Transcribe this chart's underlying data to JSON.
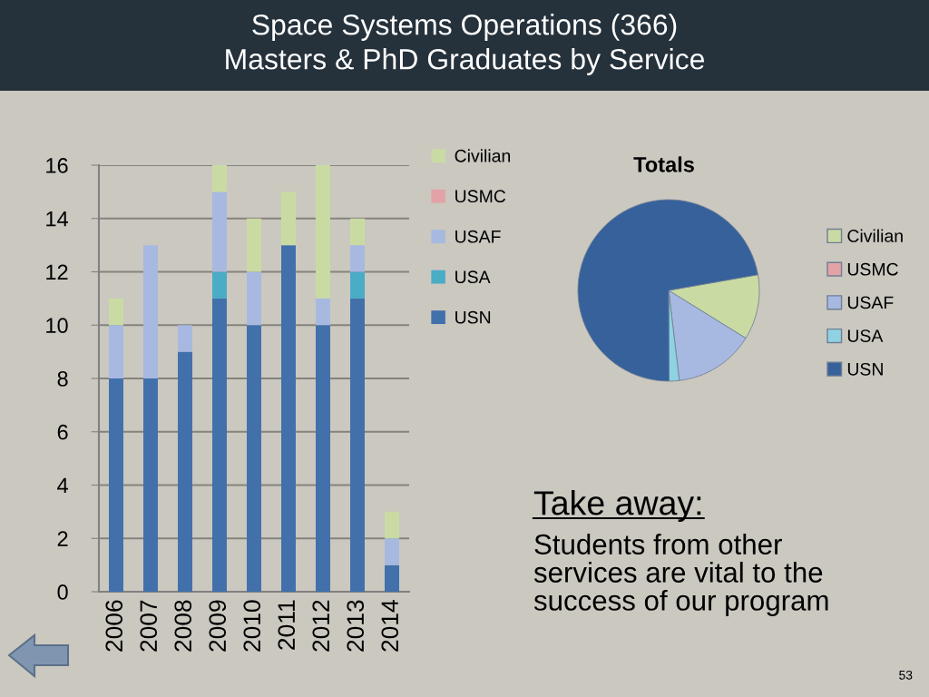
{
  "chart_data": [
    {
      "type": "bar",
      "title": "Space Systems Operations (366)",
      "subtitle": "Masters & PhD Graduates by Service",
      "categories": [
        "2006",
        "2007",
        "2008",
        "2009",
        "2010",
        "2011",
        "2012",
        "2013",
        "2014"
      ],
      "stacked": true,
      "series": [
        {
          "name": "USN",
          "color": "#4170ab",
          "values": [
            8,
            8,
            9,
            11,
            10,
            13,
            10,
            11,
            1
          ]
        },
        {
          "name": "USA",
          "color": "#4bacc6",
          "values": [
            0,
            0,
            0,
            1,
            0,
            0,
            0,
            1,
            0
          ]
        },
        {
          "name": "USAF",
          "color": "#a7b9e0",
          "values": [
            2,
            5,
            1,
            3,
            2,
            0,
            1,
            1,
            1
          ]
        },
        {
          "name": "USMC",
          "color": "#e3a3a6",
          "values": [
            0,
            0,
            0,
            0,
            0,
            0,
            0,
            0,
            0
          ]
        },
        {
          "name": "Civilian",
          "color": "#c9dba3",
          "values": [
            1,
            0,
            0,
            1,
            2,
            2,
            5,
            1,
            1
          ]
        }
      ],
      "ylim": [
        0,
        16
      ],
      "yticks": [
        0,
        2,
        4,
        6,
        8,
        10,
        12,
        14,
        16
      ],
      "grid": "y",
      "legend": "top right"
    },
    {
      "type": "pie",
      "title": "Totals",
      "categories": [
        "Civilian",
        "USMC",
        "USAF",
        "USA",
        "USN"
      ],
      "values": [
        11.6,
        0,
        14.3,
        1.8,
        72.3
      ],
      "colors": [
        "#c9dba3",
        "#e3a3a6",
        "#a7b9e0",
        "#8fd3e3",
        "#36619b"
      ],
      "legend": "right"
    },
    {
      "type": "other",
      "title": "Take away:",
      "annotations": [
        "Students from other\nservices are vital to the\nsuccess of our program",
        "53"
      ]
    }
  ]
}
